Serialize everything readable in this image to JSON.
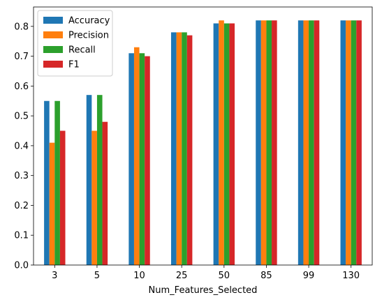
{
  "chart_data": {
    "type": "bar",
    "title": "",
    "xlabel": "Num_Features_Selected",
    "ylabel": "",
    "categories": [
      "3",
      "5",
      "10",
      "25",
      "50",
      "85",
      "99",
      "130"
    ],
    "ylim": [
      0,
      0.865
    ],
    "yticks": [
      0.0,
      0.1,
      0.2,
      0.3,
      0.4,
      0.5,
      0.6,
      0.7,
      0.8
    ],
    "ytick_labels": [
      "0.0",
      "0.1",
      "0.2",
      "0.3",
      "0.4",
      "0.5",
      "0.6",
      "0.7",
      "0.8"
    ],
    "grid": false,
    "legend_position": "top-left",
    "series": [
      {
        "name": "Accuracy",
        "color": "#1f77b4",
        "values": [
          0.55,
          0.57,
          0.71,
          0.78,
          0.81,
          0.82,
          0.82,
          0.82
        ]
      },
      {
        "name": "Precision",
        "color": "#ff7f0e",
        "values": [
          0.41,
          0.45,
          0.73,
          0.78,
          0.82,
          0.82,
          0.82,
          0.82
        ]
      },
      {
        "name": "Recall",
        "color": "#2ca02c",
        "values": [
          0.55,
          0.57,
          0.71,
          0.78,
          0.81,
          0.82,
          0.82,
          0.82
        ]
      },
      {
        "name": "F1",
        "color": "#d62728",
        "values": [
          0.45,
          0.48,
          0.7,
          0.77,
          0.81,
          0.82,
          0.82,
          0.82
        ]
      }
    ]
  }
}
